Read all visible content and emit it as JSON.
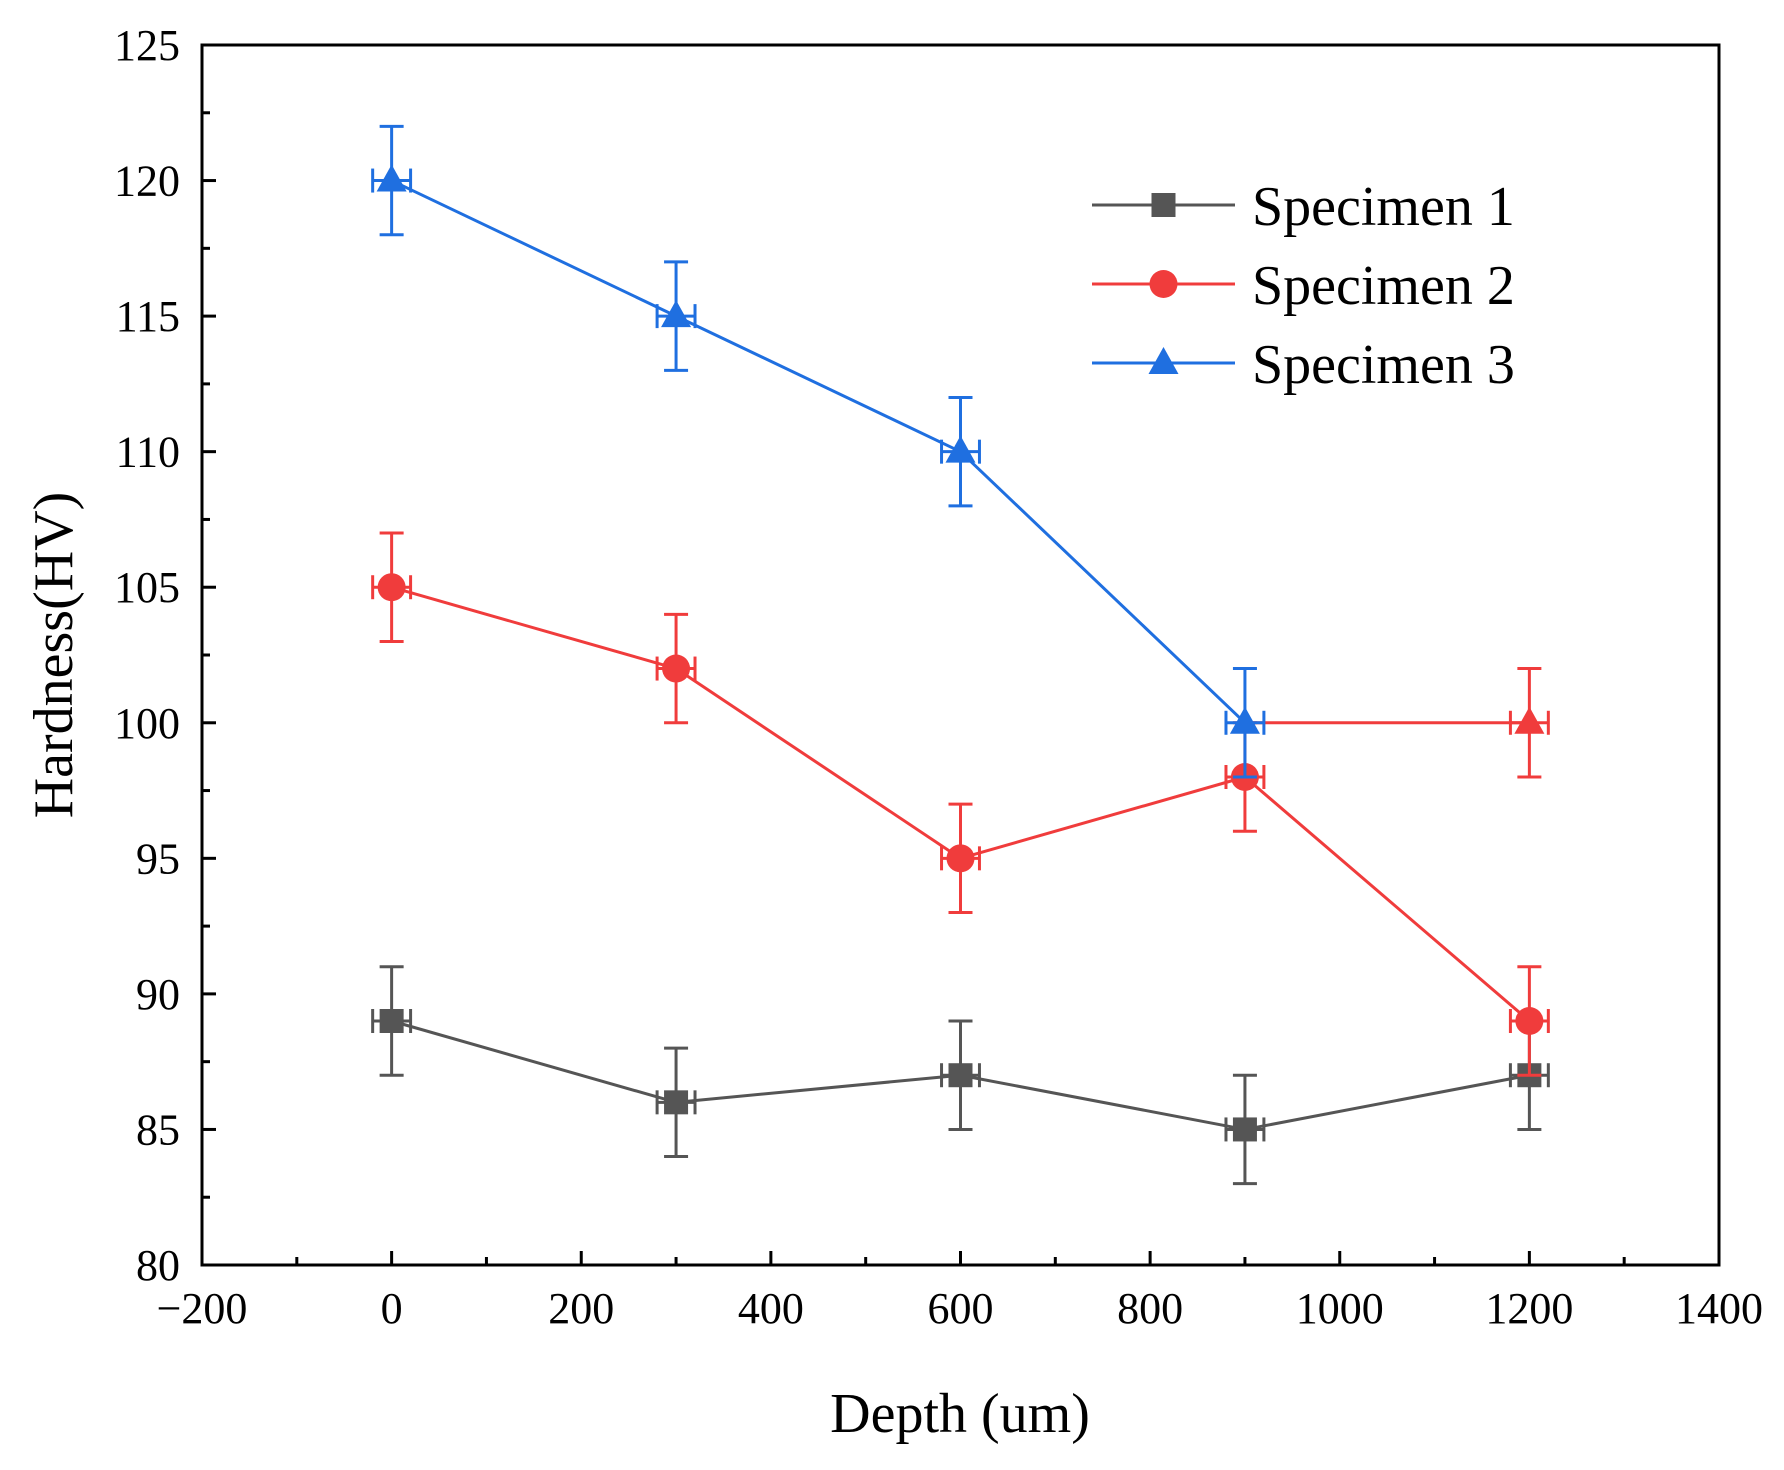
{
  "chart_data": {
    "type": "line",
    "title": "",
    "xlabel": "Depth (um)",
    "ylabel": "Hardness(HV)",
    "xlim": [
      -200,
      1400
    ],
    "ylim": [
      80,
      125
    ],
    "x_ticks": [
      -200,
      0,
      200,
      400,
      600,
      800,
      1000,
      1200,
      1400
    ],
    "x_tick_labels": [
      "−200",
      "0",
      "200",
      "400",
      "600",
      "800",
      "1000",
      "1200",
      "1400"
    ],
    "y_ticks": [
      80,
      85,
      90,
      95,
      100,
      105,
      110,
      115,
      120,
      125
    ],
    "y_tick_labels": [
      "80",
      "85",
      "90",
      "95",
      "100",
      "105",
      "110",
      "115",
      "120",
      "125"
    ],
    "grid": false,
    "legend_position": "top-right",
    "x_error": 20,
    "series": [
      {
        "name": "Specimen 1",
        "color": "#555555",
        "marker": "square",
        "x": [
          0,
          300,
          600,
          900,
          1200
        ],
        "y": [
          89,
          86,
          87,
          85,
          87
        ],
        "y_error": [
          2,
          2,
          2,
          2,
          2
        ]
      },
      {
        "name": "Specimen 2",
        "color": "#f03c3c",
        "marker": "circle",
        "x": [
          0,
          300,
          600,
          900,
          1200
        ],
        "y": [
          105,
          102,
          95,
          98,
          89
        ],
        "y_error": [
          2,
          2,
          2,
          2,
          2
        ]
      },
      {
        "name": "Specimen 3",
        "color": "#1f6fe0",
        "marker": "triangle",
        "x": [
          0,
          300,
          600,
          900,
          1200
        ],
        "y": [
          120,
          115,
          110,
          100,
          100
        ],
        "y_error": [
          2,
          2,
          2,
          2,
          2
        ],
        "point_colors": [
          "#1f6fe0",
          "#1f6fe0",
          "#1f6fe0",
          "#1f6fe0",
          "#f03c3c"
        ],
        "segment_colors": [
          "#1f6fe0",
          "#1f6fe0",
          "#1f6fe0",
          "#f03c3c"
        ]
      }
    ]
  }
}
